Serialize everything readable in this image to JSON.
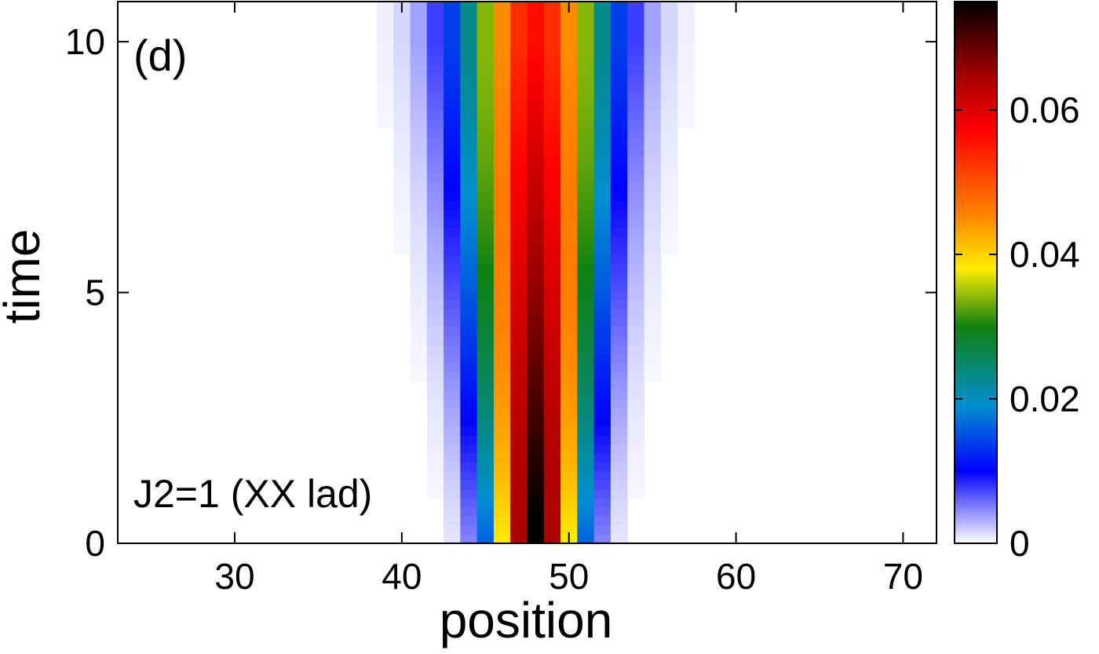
{
  "chart_data": {
    "type": "heatmap",
    "panel_label": "(d)",
    "annotation": "J2=1 (XX lad)",
    "xlabel": "position",
    "ylabel": "time",
    "xlim": [
      23,
      72
    ],
    "ylim": [
      0,
      10.8
    ],
    "xticks": [
      30,
      40,
      50,
      60,
      70
    ],
    "yticks": [
      0,
      5,
      10
    ],
    "colorbar": {
      "range": [
        0,
        0.075
      ],
      "ticks": [
        0,
        0.02,
        0.04,
        0.06
      ],
      "tick_labels": [
        "0",
        "0.02",
        "0.04",
        "0.06"
      ],
      "colors": [
        {
          "v": 0.0,
          "c": "#ffffff"
        },
        {
          "v": 0.1333,
          "c": "#0000ff"
        },
        {
          "v": 0.2533,
          "c": "#008fd0"
        },
        {
          "v": 0.4,
          "c": "#108010"
        },
        {
          "v": 0.5067,
          "c": "#ffee00"
        },
        {
          "v": 0.6,
          "c": "#ff8a00"
        },
        {
          "v": 0.76,
          "c": "#ff0000"
        },
        {
          "v": 0.8667,
          "c": "#a00000"
        },
        {
          "v": 1.0,
          "c": "#000000"
        }
      ]
    },
    "data_model": {
      "description_keys": [
        "center",
        "peak_t0",
        "peak_t10",
        "sigma_t0",
        "sigma_t10",
        "sites",
        "time_steps"
      ],
      "center": 48,
      "peak_t0": 0.076,
      "peak_t10": 0.056,
      "sigma_t0": 1.7,
      "sigma_t10": 3.0,
      "sites": [
        23,
        72
      ],
      "time_steps": 60
    }
  }
}
